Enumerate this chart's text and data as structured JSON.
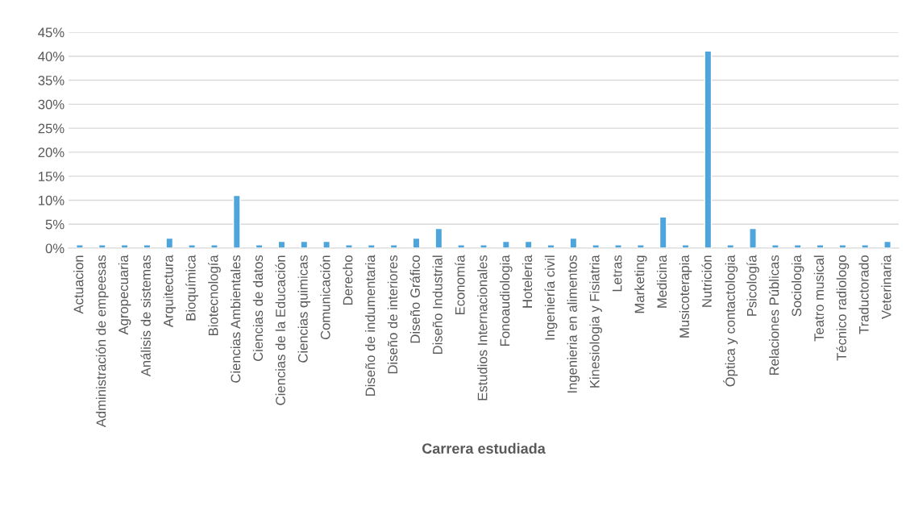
{
  "chart_data": {
    "type": "bar",
    "xlabel": "Carrera estudiada",
    "categories": [
      "Actuacion",
      "Administración de empeesas",
      "Agropecuaria",
      "Análisis de sistemas",
      "Arquitectura",
      "Bioquímica",
      "Biotecnología",
      "Ciencias Ambientales",
      "Ciencias de datos",
      "Ciencias de la Educación",
      "Ciencias quimicas",
      "Comunicación",
      "Derecho",
      "Diseño de indumentaria",
      "Diseño de interiores",
      "Diseño Gráfico",
      "Diseño Industrial",
      "Economía",
      "Estudios Internacionales",
      "Fonoaudiologia",
      "Hoteleria",
      "Ingeniería civil",
      "Ingenieria en alimentos",
      "Kinesiologia y Fisiatria",
      "Letras",
      "Marketing",
      "Medicina",
      "Musicoterapia",
      "Nutrición",
      "Óptica y contactologia",
      "Psicología",
      "Relaciones Públicas",
      "Sociologia",
      "Teatro musical",
      "Técnico radiologo",
      "Traductorado",
      "Veterinaria"
    ],
    "values": [
      0.7,
      0.7,
      0.7,
      0.7,
      2.1,
      0.7,
      0.7,
      11.0,
      0.7,
      1.4,
      1.4,
      1.4,
      0.7,
      0.7,
      0.7,
      2.1,
      4.1,
      0.7,
      0.7,
      1.4,
      1.4,
      0.7,
      2.1,
      0.7,
      0.7,
      0.7,
      6.5,
      0.7,
      41.1,
      0.7,
      4.1,
      0.7,
      0.7,
      0.7,
      0.7,
      0.7,
      1.4
    ],
    "color": "#4ea5dc",
    "ylim": [
      0,
      45
    ],
    "yticks": [
      {
        "value": 0,
        "label": "0%"
      },
      {
        "value": 5,
        "label": "5%"
      },
      {
        "value": 10,
        "label": "10%"
      },
      {
        "value": 15,
        "label": "15%"
      },
      {
        "value": 20,
        "label": "20%"
      },
      {
        "value": 25,
        "label": "25%"
      },
      {
        "value": 30,
        "label": "30%"
      },
      {
        "value": 35,
        "label": "35%"
      },
      {
        "value": 40,
        "label": "40%"
      },
      {
        "value": 45,
        "label": "45%"
      }
    ],
    "grid": "y"
  }
}
